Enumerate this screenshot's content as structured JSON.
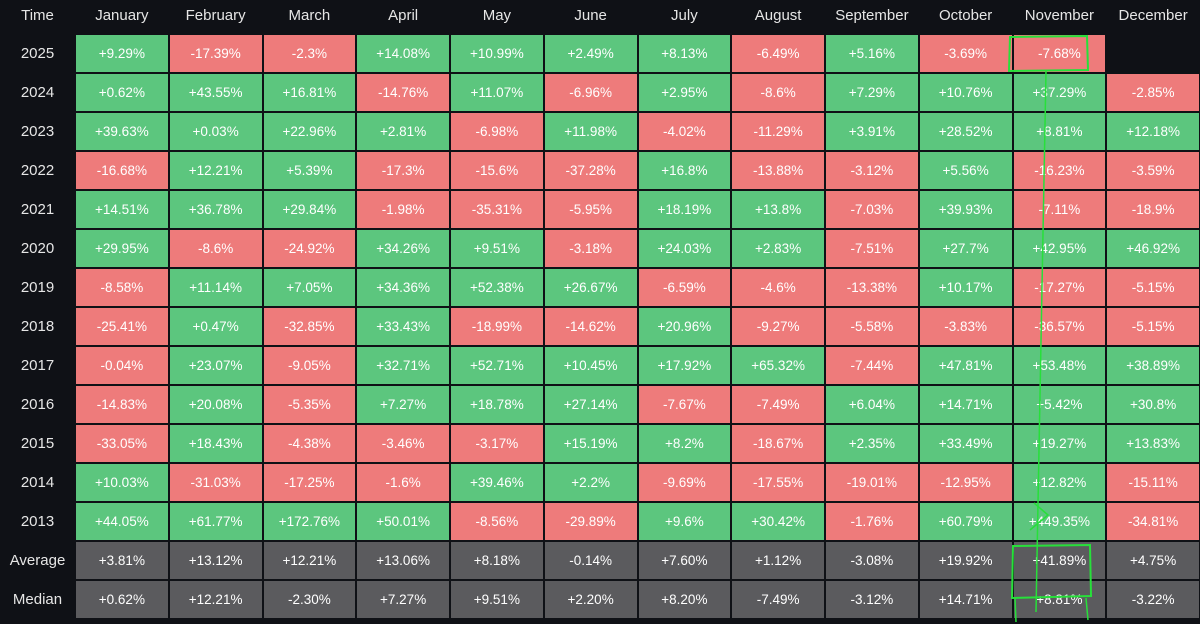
{
  "table": {
    "header": [
      "Time",
      "January",
      "February",
      "March",
      "April",
      "May",
      "June",
      "July",
      "August",
      "September",
      "October",
      "November",
      "December"
    ],
    "rows": [
      {
        "label": "2025",
        "cells": [
          "+9.29%",
          "-17.39%",
          "-2.3%",
          "+14.08%",
          "+10.99%",
          "+2.49%",
          "+8.13%",
          "-6.49%",
          "+5.16%",
          "-3.69%",
          "-7.68%",
          null
        ]
      },
      {
        "label": "2024",
        "cells": [
          "+0.62%",
          "+43.55%",
          "+16.81%",
          "-14.76%",
          "+11.07%",
          "-6.96%",
          "+2.95%",
          "-8.6%",
          "+7.29%",
          "+10.76%",
          "+37.29%",
          "-2.85%"
        ]
      },
      {
        "label": "2023",
        "cells": [
          "+39.63%",
          "+0.03%",
          "+22.96%",
          "+2.81%",
          "-6.98%",
          "+11.98%",
          "-4.02%",
          "-11.29%",
          "+3.91%",
          "+28.52%",
          "+8.81%",
          "+12.18%"
        ]
      },
      {
        "label": "2022",
        "cells": [
          "-16.68%",
          "+12.21%",
          "+5.39%",
          "-17.3%",
          "-15.6%",
          "-37.28%",
          "+16.8%",
          "-13.88%",
          "-3.12%",
          "+5.56%",
          "-16.23%",
          "-3.59%"
        ]
      },
      {
        "label": "2021",
        "cells": [
          "+14.51%",
          "+36.78%",
          "+29.84%",
          "-1.98%",
          "-35.31%",
          "-5.95%",
          "+18.19%",
          "+13.8%",
          "-7.03%",
          "+39.93%",
          "-7.11%",
          "-18.9%"
        ]
      },
      {
        "label": "2020",
        "cells": [
          "+29.95%",
          "-8.6%",
          "-24.92%",
          "+34.26%",
          "+9.51%",
          "-3.18%",
          "+24.03%",
          "+2.83%",
          "-7.51%",
          "+27.7%",
          "+42.95%",
          "+46.92%"
        ]
      },
      {
        "label": "2019",
        "cells": [
          "-8.58%",
          "+11.14%",
          "+7.05%",
          "+34.36%",
          "+52.38%",
          "+26.67%",
          "-6.59%",
          "-4.6%",
          "-13.38%",
          "+10.17%",
          "-17.27%",
          "-5.15%"
        ]
      },
      {
        "label": "2018",
        "cells": [
          "-25.41%",
          "+0.47%",
          "-32.85%",
          "+33.43%",
          "-18.99%",
          "-14.62%",
          "+20.96%",
          "-9.27%",
          "-5.58%",
          "-3.83%",
          "-36.57%",
          "-5.15%"
        ]
      },
      {
        "label": "2017",
        "cells": [
          "-0.04%",
          "+23.07%",
          "-9.05%",
          "+32.71%",
          "+52.71%",
          "+10.45%",
          "+17.92%",
          "+65.32%",
          "-7.44%",
          "+47.81%",
          "+53.48%",
          "+38.89%"
        ]
      },
      {
        "label": "2016",
        "cells": [
          "-14.83%",
          "+20.08%",
          "-5.35%",
          "+7.27%",
          "+18.78%",
          "+27.14%",
          "-7.67%",
          "-7.49%",
          "+6.04%",
          "+14.71%",
          "+5.42%",
          "+30.8%"
        ]
      },
      {
        "label": "2015",
        "cells": [
          "-33.05%",
          "+18.43%",
          "-4.38%",
          "-3.46%",
          "-3.17%",
          "+15.19%",
          "+8.2%",
          "-18.67%",
          "+2.35%",
          "+33.49%",
          "+19.27%",
          "+13.83%"
        ]
      },
      {
        "label": "2014",
        "cells": [
          "+10.03%",
          "-31.03%",
          "-17.25%",
          "-1.6%",
          "+39.46%",
          "+2.2%",
          "-9.69%",
          "-17.55%",
          "-19.01%",
          "-12.95%",
          "+12.82%",
          "-15.11%"
        ]
      },
      {
        "label": "2013",
        "cells": [
          "+44.05%",
          "+61.77%",
          "+172.76%",
          "+50.01%",
          "-8.56%",
          "-29.89%",
          "+9.6%",
          "+30.42%",
          "-1.76%",
          "+60.79%",
          "+449.35%",
          "-34.81%"
        ]
      }
    ],
    "summary": [
      {
        "label": "Average",
        "cells": [
          "+3.81%",
          "+13.12%",
          "+12.21%",
          "+13.06%",
          "+8.18%",
          "-0.14%",
          "+7.60%",
          "+1.12%",
          "-3.08%",
          "+19.92%",
          "+41.89%",
          "+4.75%"
        ]
      },
      {
        "label": "Median",
        "cells": [
          "+0.62%",
          "+12.21%",
          "-2.30%",
          "+7.27%",
          "+9.51%",
          "+2.20%",
          "+8.20%",
          "-7.49%",
          "-3.12%",
          "+14.71%",
          "+8.81%",
          "-3.22%"
        ]
      }
    ]
  }
}
